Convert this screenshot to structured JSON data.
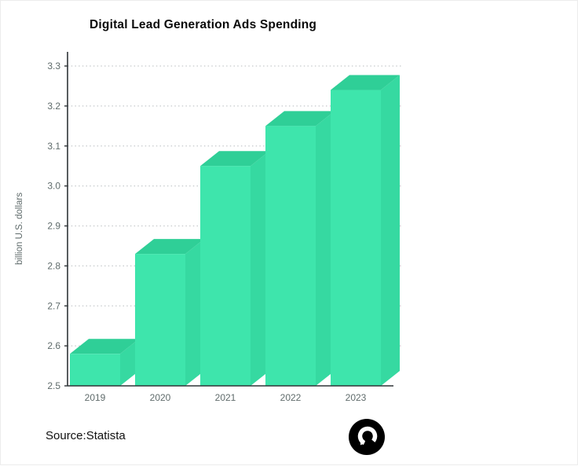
{
  "title": "Digital Lead Generation Ads Spending",
  "source": "Source:Statista",
  "logo": {
    "name": "brand-bubble-logo",
    "background": "#000000",
    "glyph": "#ffffff"
  },
  "chart_data": {
    "type": "bar",
    "categories": [
      "2019",
      "2020",
      "2021",
      "2022",
      "2023"
    ],
    "values": [
      2.58,
      2.83,
      3.05,
      3.15,
      3.24
    ],
    "title": "Digital Lead Generation Ads Spending",
    "xlabel": "",
    "ylabel": "billion U.S. dollars",
    "ylim": [
      2.5,
      3.3
    ],
    "ytick_step": 0.1,
    "ytick_labels": [
      "2.5",
      "2.6",
      "2.7",
      "2.8",
      "2.9",
      "3.0",
      "3.1",
      "3.2",
      "3.3"
    ],
    "grid": "dotted-horizontal",
    "legend": "none",
    "bar_style": "3d",
    "colors": {
      "bar_front": "#3EE5AC",
      "bar_top": "#2FCF97",
      "bar_side": "#36D9A1",
      "axis": "#2f3437",
      "grid": "#c6cacc",
      "tick_text": "#5f6b6b",
      "title_text": "#0a0a0a",
      "source_text": "#111111"
    }
  }
}
